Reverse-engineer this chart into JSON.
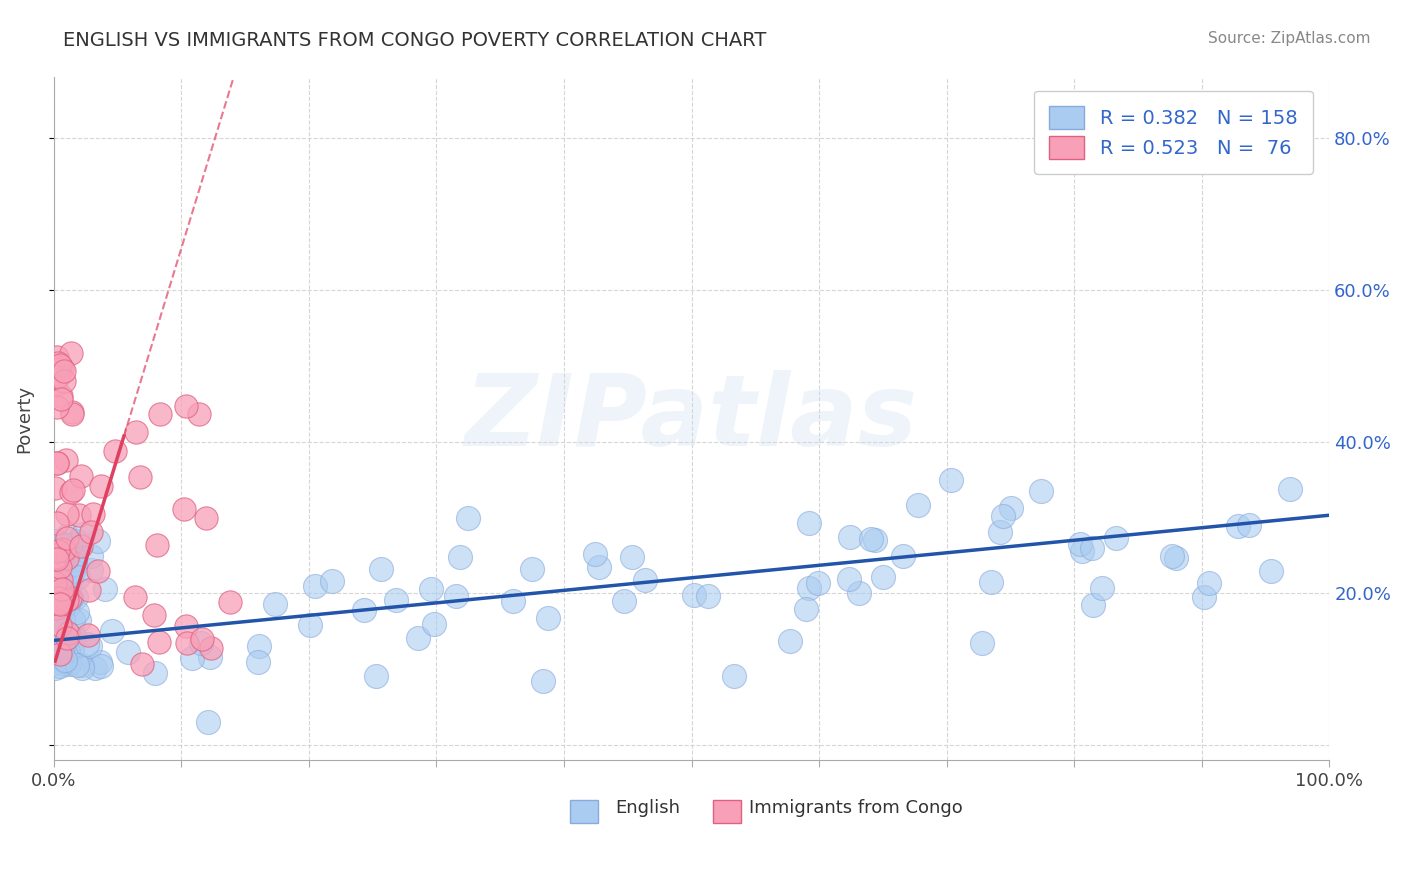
{
  "title": "ENGLISH VS IMMIGRANTS FROM CONGO POVERTY CORRELATION CHART",
  "source": "Source: ZipAtlas.com",
  "ylabel": "Poverty",
  "xlim": [
    0.0,
    1.0
  ],
  "ylim": [
    -0.02,
    0.88
  ],
  "xtick_labels": [
    "0.0%",
    "",
    "",
    "",
    "",
    "",
    "",
    "",
    "",
    "",
    "100.0%"
  ],
  "ytick_labels_right": [
    "",
    "20.0%",
    "40.0%",
    "60.0%",
    "80.0%"
  ],
  "english_color": "#aaccf0",
  "english_edge": "#88aadd",
  "congo_color": "#f8a0b8",
  "congo_edge": "#e06080",
  "trend_english_color": "#2255aa",
  "trend_congo_color": "#e04060",
  "R_english": 0.382,
  "N_english": 158,
  "R_congo": 0.523,
  "N_congo": 76,
  "watermark": "ZIPatlas",
  "background_color": "#ffffff",
  "grid_color": "#cccccc",
  "title_color": "#333333",
  "legend_text_color": "#3366cc",
  "source_color": "#888888"
}
